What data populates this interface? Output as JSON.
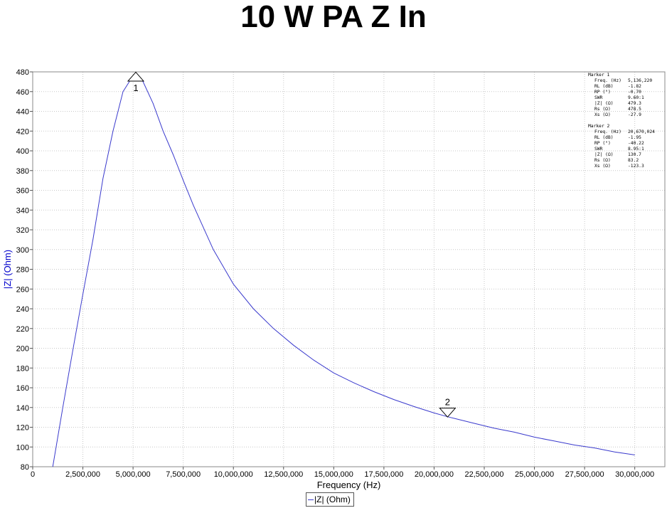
{
  "chart_data": {
    "type": "line",
    "title": "10 W PA Z In",
    "xlabel": "Frequency (Hz)",
    "ylabel": "|Z| (Ohm)",
    "xlim": [
      0,
      31500000
    ],
    "ylim": [
      80,
      480
    ],
    "x_ticks": [
      0,
      2500000,
      5000000,
      7500000,
      10000000,
      12500000,
      15000000,
      17500000,
      20000000,
      22500000,
      25000000,
      27500000,
      30000000
    ],
    "x_tick_labels": [
      "0",
      "2,500,000",
      "5,000,000",
      "7,500,000",
      "10,000,000",
      "12,500,000",
      "15,000,000",
      "17,500,000",
      "20,000,000",
      "22,500,000",
      "25,000,000",
      "27,500,000",
      "30,000,000"
    ],
    "y_ticks": [
      80,
      100,
      120,
      140,
      160,
      180,
      200,
      220,
      240,
      260,
      280,
      300,
      320,
      340,
      360,
      380,
      400,
      420,
      440,
      460,
      480
    ],
    "grid": true,
    "legend": "bottom-center",
    "series": [
      {
        "name": "|Z| (Ohm)",
        "color": "#3a3acd",
        "x": [
          1000000,
          1500000,
          2000000,
          2500000,
          3000000,
          3500000,
          4000000,
          4500000,
          5000000,
          5136220,
          5500000,
          6000000,
          6500000,
          7000000,
          7500000,
          8000000,
          9000000,
          10000000,
          11000000,
          12000000,
          13000000,
          14000000,
          15000000,
          16000000,
          17000000,
          18000000,
          19000000,
          20000000,
          20670024,
          21000000,
          22000000,
          23000000,
          24000000,
          25000000,
          26000000,
          27000000,
          28000000,
          29000000,
          30000000
        ],
        "y": [
          80,
          140,
          198,
          255,
          310,
          372,
          420,
          460,
          476,
          479,
          470,
          448,
          420,
          396,
          370,
          345,
          300,
          265,
          240,
          220,
          203,
          188,
          175,
          165,
          156,
          148,
          141,
          134.5,
          130.7,
          129,
          124,
          119,
          115,
          110,
          106,
          102,
          99,
          95,
          92
        ]
      }
    ],
    "markers": [
      {
        "label": "1",
        "x": 5136220,
        "y": 479.3,
        "direction": "up",
        "readout": [
          {
            "name": "Marker 1",
            "value": ""
          },
          {
            "name": "Freq. (Hz)",
            "value": "5,136,220"
          },
          {
            "name": "RL (dB)",
            "value": "-1.82"
          },
          {
            "name": "RP (°)",
            "value": "-0.70"
          },
          {
            "name": "SWR",
            "value": "9.60:1"
          },
          {
            "name": "|Z| (Ω)",
            "value": "479.3"
          },
          {
            "name": "Rs (Ω)",
            "value": "478.5"
          },
          {
            "name": "Xs (Ω)",
            "value": "-27.9"
          }
        ]
      },
      {
        "label": "2",
        "x": 20670024,
        "y": 130.7,
        "direction": "down",
        "readout": [
          {
            "name": "Marker 2",
            "value": ""
          },
          {
            "name": "Freq. (Hz)",
            "value": "20,670,024"
          },
          {
            "name": "RL (dB)",
            "value": "-1.95"
          },
          {
            "name": "RP (°)",
            "value": "-40.22"
          },
          {
            "name": "SWR",
            "value": "8.95:1"
          },
          {
            "name": "|Z| (Ω)",
            "value": "130.7"
          },
          {
            "name": "Rs (Ω)",
            "value": "83.2"
          },
          {
            "name": "Xs (Ω)",
            "value": "-123.3"
          }
        ]
      }
    ]
  }
}
